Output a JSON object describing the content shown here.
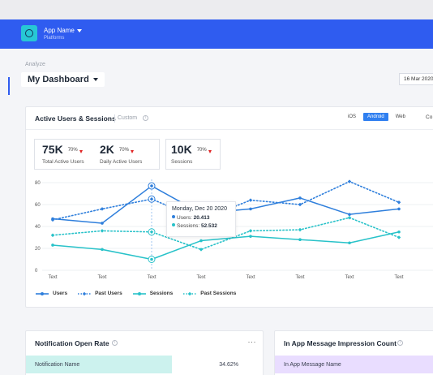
{
  "app": {
    "name": "App Name",
    "subtitle": "Platforms"
  },
  "header": {
    "section": "Analyze",
    "dashboard_title": "My Dashboard",
    "date": "16 Mar 2020"
  },
  "main_card": {
    "title": "Active Users & Sessions",
    "custom_label": "Custom",
    "tabs": [
      "iOS",
      "Android",
      "Web"
    ],
    "active_tab": "Android",
    "extra_tab": "Co"
  },
  "kpis": [
    {
      "value": "75K",
      "change": "70%",
      "label": "Total Active Users"
    },
    {
      "value": "2K",
      "change": "70%",
      "label": "Daily Active Users"
    },
    {
      "value": "10K",
      "change": "70%",
      "label": "Sessions"
    }
  ],
  "colors": {
    "users": "#2f7fdc",
    "past_users": "#2f7fdc",
    "sessions": "#28c2c9",
    "past_sessions": "#28c2c9",
    "negative": "#e02424",
    "brand": "#2f5cf0"
  },
  "tooltip": {
    "date": "Monday, Dec 20 2020",
    "users_label": "Users:",
    "users_value": "20.413",
    "sessions_label": "Sessions:",
    "sessions_value": "52.532"
  },
  "chart_data": {
    "type": "line",
    "x": [
      "Text",
      "Text",
      "Text",
      "Text",
      "Text",
      "Text",
      "Text",
      "Text"
    ],
    "y_ticks": [
      0,
      20,
      40,
      60,
      80
    ],
    "ylim": [
      0,
      80
    ],
    "legend_position": "bottom-left",
    "grid": true,
    "series": [
      {
        "name": "Users",
        "style": "solid",
        "values": [
          47,
          43,
          77,
          52,
          56,
          66,
          51,
          56
        ]
      },
      {
        "name": "Past Users",
        "style": "dotted",
        "values": [
          46,
          56,
          65,
          46,
          64,
          60,
          81,
          62
        ]
      },
      {
        "name": "Sessions",
        "style": "solid",
        "values": [
          23,
          19,
          10,
          27,
          31,
          28,
          25,
          35
        ]
      },
      {
        "name": "Past Sessions",
        "style": "dotted",
        "values": [
          32,
          36,
          35,
          19,
          36,
          37,
          48,
          30
        ]
      }
    ]
  },
  "notification_card": {
    "title": "Notification Open Rate",
    "row_label": "Notification Name",
    "row_value": "34.62%",
    "more": "···"
  },
  "inapp_card": {
    "title": "In App Message Impression Count",
    "row_label": "In App Message Name"
  }
}
